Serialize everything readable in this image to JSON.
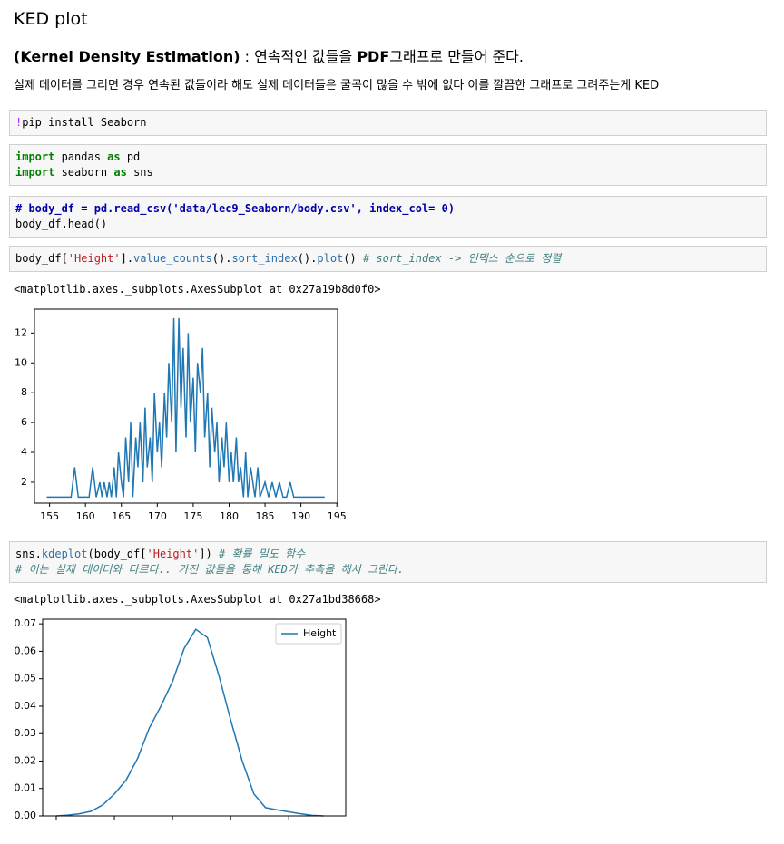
{
  "header": {
    "title": "KED plot",
    "subtitle": [
      {
        "text": "(Kernel Density Estimation)",
        "bold": true
      },
      {
        "text": " : 연속적인 값들을 ",
        "bold": false
      },
      {
        "text": "PDF",
        "bold": true
      },
      {
        "text": "그래프로 만들어 준다.",
        "bold": false
      }
    ],
    "description": "실제 데이터를 그리면 경우 연속된 값들이라 해도 실제 데이터들은 굴곡이 많을 수 밖에 없다 이를 깔끔한 그래프로 그려주는게 KED"
  },
  "cells": [
    {
      "lines": [
        [
          {
            "text": "!",
            "color": "#aa22ff"
          },
          {
            "text": "pip install Seaborn",
            "color": "#000000"
          }
        ]
      ]
    },
    {
      "lines": [
        [
          {
            "text": "import",
            "color": "#008000",
            "bold": true
          },
          {
            "text": " pandas ",
            "color": "#000000"
          },
          {
            "text": "as",
            "color": "#008000",
            "bold": true
          },
          {
            "text": " pd",
            "color": "#000000"
          }
        ],
        [
          {
            "text": "import",
            "color": "#008000",
            "bold": true
          },
          {
            "text": " seaborn ",
            "color": "#000000"
          },
          {
            "text": "as",
            "color": "#008000",
            "bold": true
          },
          {
            "text": " sns",
            "color": "#000000"
          }
        ]
      ]
    },
    {
      "lines": [
        [
          {
            "text": "# body_df = pd.read_csv('data/lec9_Seaborn/body.csv', index_col= 0)",
            "color": "#0000aa",
            "bold": true
          }
        ],
        [
          {
            "text": "body_df.head()",
            "color": "#000000"
          }
        ]
      ]
    },
    {
      "lines": [
        [
          {
            "text": "body_df[",
            "color": "#000000"
          },
          {
            "text": "'Height'",
            "color": "#ba2121"
          },
          {
            "text": "].",
            "color": "#000000"
          },
          {
            "text": "value_counts",
            "color": "#2f6fa7"
          },
          {
            "text": "().",
            "color": "#000000"
          },
          {
            "text": "sort_index",
            "color": "#2f6fa7"
          },
          {
            "text": "().",
            "color": "#000000"
          },
          {
            "text": "plot",
            "color": "#2f6fa7"
          },
          {
            "text": "() ",
            "color": "#000000"
          },
          {
            "text": "# sort_index -> 인덱스 순으로 정렬",
            "color": "#408080",
            "italic": true
          }
        ]
      ],
      "output": "<matplotlib.axes._subplots.AxesSubplot at 0x27a19b8d0f0>"
    },
    {
      "lines": [
        [
          {
            "text": "sns.",
            "color": "#000000"
          },
          {
            "text": "kdeplot",
            "color": "#2f6fa7"
          },
          {
            "text": "(body_df[",
            "color": "#000000"
          },
          {
            "text": "'Height'",
            "color": "#ba2121"
          },
          {
            "text": "]) ",
            "color": "#000000"
          },
          {
            "text": "# 확률 밀도 함수",
            "color": "#408080",
            "italic": true
          }
        ],
        [
          {
            "text": "# 이는 실제 데이터와 다르다.. 가진 값들을 통해 KED가 추측을 해서 그린다.",
            "color": "#408080",
            "italic": true
          }
        ]
      ],
      "output": "<matplotlib.axes._subplots.AxesSubplot at 0x27a1bd38668>"
    }
  ],
  "chart_data": [
    {
      "type": "line",
      "color": "#1f77b4",
      "x": [
        154.6,
        158.0,
        158.5,
        159.0,
        160.5,
        161.0,
        161.5,
        162.0,
        162.3,
        162.6,
        163.0,
        163.3,
        163.6,
        164.0,
        164.3,
        164.6,
        165.0,
        165.3,
        165.6,
        166.0,
        166.3,
        166.6,
        167.0,
        167.3,
        167.6,
        168.0,
        168.3,
        168.6,
        169.0,
        169.3,
        169.6,
        170.0,
        170.3,
        170.6,
        171.0,
        171.3,
        171.6,
        172.0,
        172.3,
        172.6,
        173.0,
        173.3,
        173.6,
        174.0,
        174.3,
        174.6,
        175.0,
        175.3,
        175.6,
        176.0,
        176.3,
        176.6,
        177.0,
        177.3,
        177.6,
        178.0,
        178.3,
        178.6,
        179.0,
        179.3,
        179.6,
        180.0,
        180.3,
        180.6,
        181.0,
        181.3,
        181.6,
        182.0,
        182.3,
        182.6,
        183.0,
        183.3,
        183.6,
        184.0,
        184.3,
        185.0,
        185.5,
        186.0,
        186.5,
        187.0,
        187.5,
        188.0,
        188.5,
        189.0,
        193.3
      ],
      "values": [
        1,
        1,
        3,
        1,
        1,
        3,
        1,
        2,
        1,
        2,
        1,
        2,
        1,
        3,
        1,
        4,
        2,
        1,
        5,
        2,
        6,
        1,
        5,
        3,
        6,
        2,
        7,
        3,
        5,
        2,
        8,
        4,
        6,
        3,
        8,
        5,
        10,
        6,
        13,
        4,
        13,
        7,
        11,
        5,
        12,
        6,
        9,
        4,
        10,
        8,
        11,
        5,
        8,
        3,
        7,
        4,
        6,
        2,
        5,
        3,
        6,
        2,
        4,
        2,
        5,
        2,
        3,
        1,
        4,
        1,
        3,
        2,
        1,
        3,
        1,
        2,
        1,
        2,
        1,
        2,
        1,
        1,
        2,
        1,
        1
      ],
      "xlim": [
        152.9,
        195.1
      ],
      "ylim": [
        0.6,
        13.6
      ],
      "xticks": [
        155,
        160,
        165,
        170,
        175,
        180,
        185,
        190,
        195
      ],
      "yticks": [
        2,
        4,
        6,
        8,
        10,
        12
      ]
    },
    {
      "type": "line",
      "legend": "upper right",
      "x": [
        150,
        152,
        154,
        156,
        158,
        160,
        162,
        164,
        166,
        168,
        170,
        172,
        174,
        176,
        178,
        180,
        182,
        184,
        186,
        188,
        190,
        192,
        194,
        196
      ],
      "series": [
        {
          "name": "Height",
          "color": "#1f77b4",
          "values": [
            0.0,
            0.0003,
            0.0008,
            0.0017,
            0.004,
            0.008,
            0.013,
            0.021,
            0.032,
            0.04,
            0.049,
            0.061,
            0.068,
            0.065,
            0.051,
            0.035,
            0.02,
            0.008,
            0.003,
            0.0022,
            0.0015,
            0.0008,
            0.0002,
            0.0
          ]
        }
      ],
      "xlim": [
        147.66,
        199.8
      ],
      "ylim": [
        0,
        0.0717
      ],
      "xticks": [
        150,
        160,
        170,
        180,
        190
      ],
      "yticks": [
        {
          "value": 0,
          "label": "0.00"
        },
        0.01,
        0.02,
        0.03,
        0.04,
        0.05,
        0.06,
        0.07
      ]
    }
  ]
}
